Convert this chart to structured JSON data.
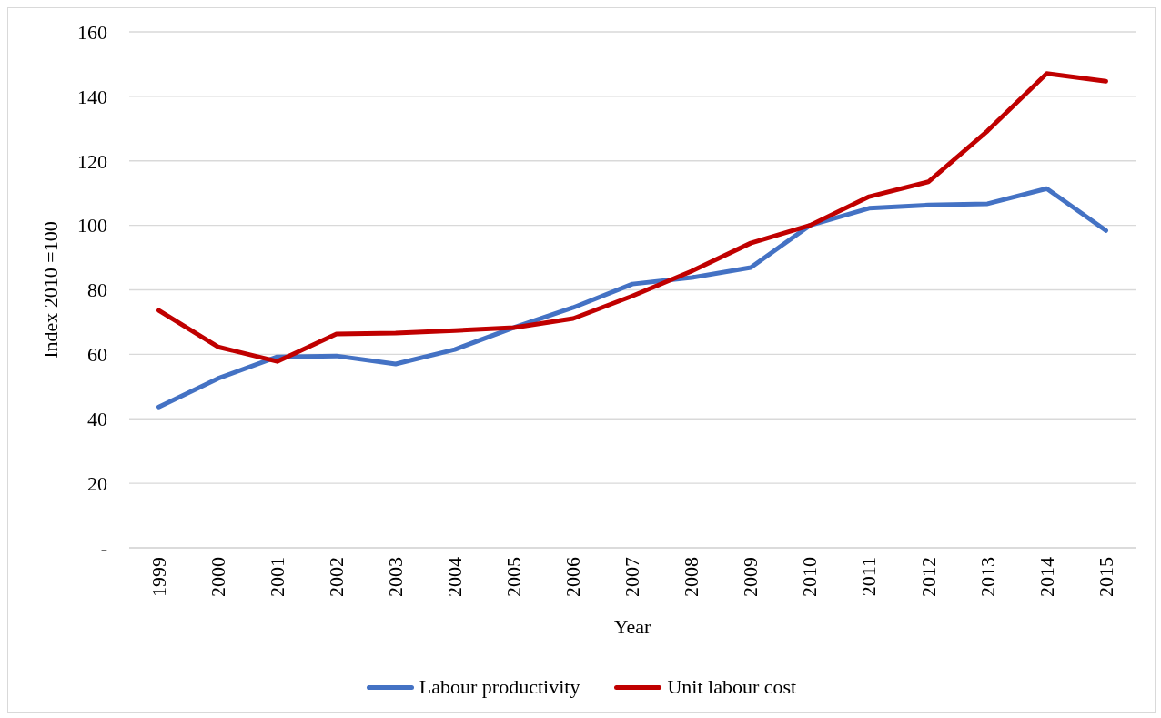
{
  "chart_data": {
    "type": "line",
    "xlabel": "Year",
    "ylabel": "Index 2010 =100",
    "categories": [
      "1999",
      "2000",
      "2001",
      "2002",
      "2003",
      "2004",
      "2005",
      "2006",
      "2007",
      "2008",
      "2009",
      "2010",
      "2011",
      "2012",
      "2013",
      "2014",
      "2015"
    ],
    "series": [
      {
        "name": "Labour productivity",
        "color": "#4472c4",
        "values": [
          43.7,
          52.5,
          59.2,
          59.5,
          57.0,
          61.5,
          68.3,
          74.5,
          81.8,
          83.8,
          86.9,
          100,
          105.3,
          106.3,
          106.7,
          111.4,
          98.4
        ]
      },
      {
        "name": "Unit labour cost",
        "color": "#c00000",
        "values": [
          73.6,
          62.3,
          57.8,
          66.3,
          66.6,
          67.4,
          68.3,
          71.1,
          78.1,
          85.8,
          94.5,
          100,
          108.9,
          113.5,
          129.3,
          147.1,
          144.7
        ]
      }
    ],
    "ylim": [
      0,
      160
    ],
    "yticks": [
      {
        "value": 0,
        "label": "-"
      },
      20,
      40,
      60,
      80,
      100,
      120,
      140,
      160
    ],
    "grid": "y",
    "legend": "bottom",
    "marker": "none"
  }
}
